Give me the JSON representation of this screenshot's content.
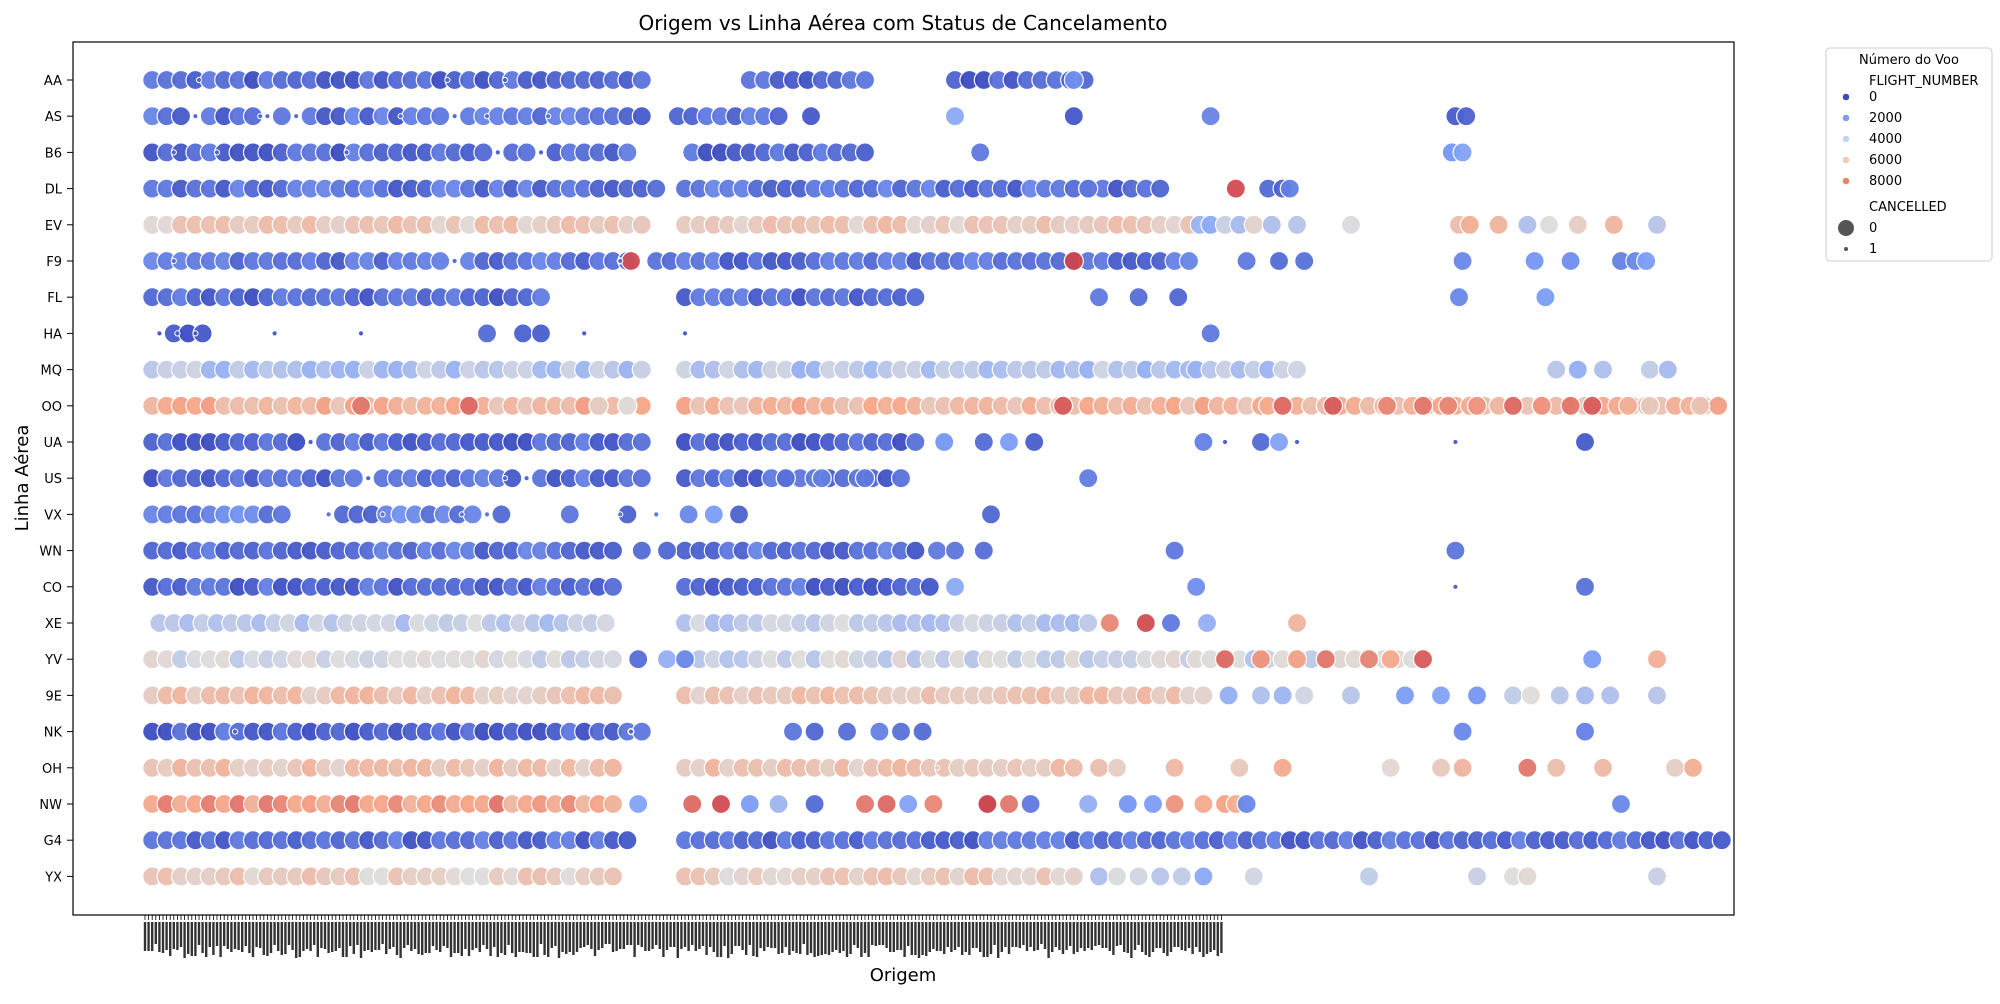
{
  "chart_data": {
    "type": "scatter",
    "title": "Origem vs Linha Aérea com Status de Cancelamento",
    "xlabel": "Origem",
    "ylabel": "Linha Aérea",
    "airlines": [
      "AA",
      "AS",
      "B6",
      "DL",
      "EV",
      "F9",
      "FL",
      "HA",
      "MQ",
      "OO",
      "UA",
      "US",
      "VX",
      "WN",
      "CO",
      "XE",
      "YV",
      "9E",
      "NK",
      "OH",
      "NW",
      "G4",
      "YX"
    ],
    "origin_tick_count": 300,
    "legend": {
      "title": "Número do Voo",
      "hue_title": "FLIGHT_NUMBER",
      "hue_items": [
        {
          "label": "0",
          "color": "#3b4cc0"
        },
        {
          "label": "2000",
          "color": "#7b9ff9"
        },
        {
          "label": "4000",
          "color": "#c0d4f5"
        },
        {
          "label": "6000",
          "color": "#f2cbb7"
        },
        {
          "label": "8000",
          "color": "#ee8468"
        }
      ],
      "size_title": "CANCELLED",
      "size_items": [
        {
          "label": "0",
          "size": "large"
        },
        {
          "label": "1",
          "size": "small"
        }
      ],
      "placement": "outside upper right"
    },
    "colormap": "coolwarm",
    "hue_range": [
      0,
      9000
    ],
    "rows": [
      {
        "airline": "AA",
        "hue": 600,
        "segments": [
          [
            2,
            140
          ],
          [
            168,
            202
          ],
          [
            225,
            264
          ]
        ],
        "extra": [
          [
            258,
            1800
          ]
        ],
        "cancelled": [
          15,
          84,
          100
        ]
      },
      {
        "airline": "AS",
        "hue": 900,
        "segments": [
          [
            2,
            138
          ],
          [
            148,
            178
          ]
        ],
        "extra": [
          [
            185,
            300
          ],
          [
            225,
            2600
          ],
          [
            258,
            300
          ],
          [
            296,
            1500
          ],
          [
            364,
            400
          ],
          [
            367,
            600
          ]
        ],
        "cancelled": [
          14,
          32,
          34,
          42,
          71,
          86,
          95,
          112
        ]
      },
      {
        "airline": "B6",
        "hue": 700,
        "segments": [
          [
            2,
            136
          ],
          [
            152,
            198
          ]
        ],
        "extra": [
          [
            200,
            500
          ],
          [
            232,
            1200
          ],
          [
            363,
            2000
          ],
          [
            366,
            2400
          ]
        ],
        "cancelled": [
          8,
          20,
          56,
          98,
          110
        ]
      },
      {
        "airline": "DL",
        "hue": 900,
        "segments": [
          [
            2,
            145
          ],
          [
            150,
            285
          ]
        ],
        "extra": [
          [
            262,
            1200
          ],
          [
            303,
            8000
          ],
          [
            312,
            800
          ],
          [
            316,
            600
          ],
          [
            318,
            1400
          ]
        ],
        "cancelled": []
      },
      {
        "airline": "EV",
        "hue": 5400,
        "segments": [
          [
            2,
            140
          ],
          [
            150,
            290
          ]
        ],
        "extra": [
          [
            293,
            3000
          ],
          [
            296,
            2600
          ],
          [
            300,
            4000
          ],
          [
            304,
            3200
          ],
          [
            308,
            5000
          ],
          [
            313,
            3400
          ],
          [
            320,
            3600
          ],
          [
            335,
            4400
          ],
          [
            365,
            5800
          ],
          [
            368,
            6400
          ],
          [
            376,
            6200
          ],
          [
            384,
            3400
          ],
          [
            390,
            4600
          ],
          [
            398,
            5200
          ],
          [
            408,
            6200
          ],
          [
            420,
            3600
          ]
        ],
        "cancelled": []
      },
      {
        "airline": "F9",
        "hue": 900,
        "segments": [
          [
            2,
            135
          ],
          [
            142,
            290
          ]
        ],
        "extra": [
          [
            132,
            8200
          ],
          [
            135,
            8000
          ],
          [
            258,
            8100
          ],
          [
            306,
            1200
          ],
          [
            315,
            800
          ],
          [
            322,
            1000
          ],
          [
            366,
            1600
          ],
          [
            386,
            2000
          ],
          [
            396,
            1800
          ],
          [
            410,
            1400
          ],
          [
            414,
            1600
          ],
          [
            417,
            2200
          ]
        ],
        "cancelled": [
          8,
          86,
          132
        ]
      },
      {
        "airline": "FL",
        "hue": 700,
        "segments": [
          [
            2,
            110
          ],
          [
            150,
            215
          ]
        ],
        "extra": [
          [
            265,
            1200
          ],
          [
            276,
            900
          ],
          [
            287,
            700
          ],
          [
            365,
            1600
          ],
          [
            389,
            2200
          ]
        ],
        "cancelled": []
      },
      {
        "airline": "HA",
        "hue": 500,
        "segments": [
          [
            4,
            16
          ]
        ],
        "extra": [
          [
            36,
            600
          ],
          [
            60,
            1000
          ],
          [
            95,
            800
          ],
          [
            105,
            600
          ],
          [
            110,
            500
          ],
          [
            122,
            600
          ],
          [
            150,
            1200
          ],
          [
            296,
            1200
          ]
        ],
        "cancelled": [
          4,
          9,
          14,
          36,
          60,
          122,
          150
        ]
      },
      {
        "airline": "MQ",
        "hue": 3500,
        "segments": [
          [
            2,
            140
          ],
          [
            150,
            290
          ],
          [
            292,
            320
          ]
        ],
        "extra": [
          [
            392,
            3600
          ],
          [
            398,
            2800
          ],
          [
            405,
            3400
          ],
          [
            418,
            3800
          ],
          [
            423,
            3200
          ]
        ],
        "cancelled": []
      },
      {
        "airline": "OO",
        "hue": 6200,
        "segments": [
          [
            2,
            140
          ],
          [
            150,
            310
          ],
          [
            312,
            400
          ],
          [
            405,
            440
          ]
        ],
        "extra": [
          [
            60,
            7400
          ],
          [
            90,
            7600
          ],
          [
            126,
            5200
          ],
          [
            134,
            4600
          ],
          [
            255,
            7800
          ],
          [
            316,
            7600
          ],
          [
            330,
            7800
          ],
          [
            345,
            7200
          ],
          [
            355,
            7400
          ],
          [
            362,
            7200
          ],
          [
            370,
            7000
          ],
          [
            380,
            7600
          ],
          [
            388,
            7000
          ],
          [
            396,
            7400
          ],
          [
            402,
            7800
          ],
          [
            412,
            6400
          ],
          [
            418,
            5400
          ],
          [
            432,
            5600
          ],
          [
            440,
            8200
          ],
          [
            442,
            4400
          ]
        ],
        "cancelled": []
      },
      {
        "airline": "UA",
        "hue": 600,
        "segments": [
          [
            2,
            140
          ],
          [
            150,
            215
          ]
        ],
        "extra": [
          [
            222,
            2000
          ],
          [
            233,
            800
          ],
          [
            240,
            2200
          ],
          [
            247,
            500
          ],
          [
            294,
            1400
          ],
          [
            300,
            1200
          ],
          [
            310,
            800
          ],
          [
            315,
            2400
          ],
          [
            320,
            1600
          ],
          [
            364,
            600
          ],
          [
            400,
            400
          ]
        ],
        "cancelled": [
          46,
          300,
          320,
          364
        ]
      },
      {
        "airline": "US",
        "hue": 700,
        "segments": [
          [
            2,
            140
          ],
          [
            150,
            210
          ]
        ],
        "extra": [
          [
            178,
            1000
          ],
          [
            188,
            1400
          ],
          [
            200,
            1200
          ],
          [
            262,
            1300
          ]
        ],
        "cancelled": [
          62,
          100,
          106
        ]
      },
      {
        "airline": "VX",
        "hue": 1200,
        "segments": [
          [
            2,
            40
          ],
          [
            55,
            100
          ]
        ],
        "extra": [
          [
            118,
            1100
          ],
          [
            134,
            600
          ],
          [
            151,
            1600
          ],
          [
            158,
            2200
          ],
          [
            165,
            600
          ],
          [
            235,
            700
          ]
        ],
        "cancelled": [
          51,
          66,
          88,
          95,
          132,
          142
        ]
      },
      {
        "airline": "WN",
        "hue": 900,
        "segments": [
          [
            2,
            132
          ],
          [
            150,
            215
          ]
        ],
        "extra": [
          [
            138,
            800
          ],
          [
            145,
            700
          ],
          [
            220,
            1200
          ],
          [
            225,
            1100
          ],
          [
            233,
            900
          ],
          [
            286,
            1200
          ],
          [
            364,
            1100
          ]
        ],
        "cancelled": []
      },
      {
        "airline": "CO",
        "hue": 700,
        "segments": [
          [
            2,
            130
          ],
          [
            150,
            220
          ]
        ],
        "extra": [
          [
            225,
            2600
          ],
          [
            292,
            1800
          ],
          [
            364,
            1600
          ],
          [
            400,
            1000
          ]
        ],
        "cancelled": [
          364
        ]
      },
      {
        "airline": "XE",
        "hue": 3800,
        "segments": [
          [
            4,
            130
          ],
          [
            150,
            265
          ]
        ],
        "extra": [
          [
            268,
            7200
          ],
          [
            278,
            8000
          ],
          [
            285,
            1200
          ],
          [
            295,
            2800
          ],
          [
            320,
            6200
          ]
        ],
        "cancelled": []
      },
      {
        "airline": "YV",
        "hue": 4200,
        "segments": [
          [
            2,
            130
          ],
          [
            150,
            290
          ],
          [
            292,
            355
          ]
        ],
        "extra": [
          [
            137,
            900
          ],
          [
            145,
            2800
          ],
          [
            150,
            1600
          ],
          [
            300,
            7600
          ],
          [
            310,
            7000
          ],
          [
            320,
            6800
          ],
          [
            328,
            7400
          ],
          [
            340,
            7200
          ],
          [
            346,
            6600
          ],
          [
            355,
            7800
          ],
          [
            402,
            2200
          ],
          [
            420,
            6400
          ]
        ],
        "cancelled": []
      },
      {
        "airline": "9E",
        "hue": 5600,
        "segments": [
          [
            2,
            132
          ],
          [
            150,
            295
          ]
        ],
        "extra": [
          [
            301,
            2800
          ],
          [
            310,
            3400
          ],
          [
            316,
            3000
          ],
          [
            322,
            4200
          ],
          [
            335,
            3600
          ],
          [
            350,
            2200
          ],
          [
            360,
            2400
          ],
          [
            370,
            2000
          ],
          [
            380,
            3800
          ],
          [
            385,
            4600
          ],
          [
            393,
            3600
          ],
          [
            400,
            3200
          ],
          [
            407,
            3400
          ],
          [
            420,
            3600
          ]
        ],
        "cancelled": []
      },
      {
        "airline": "NK",
        "hue": 600,
        "segments": [
          [
            2,
            140
          ]
        ],
        "extra": [
          [
            135,
            800
          ],
          [
            180,
            1100
          ],
          [
            186,
            700
          ],
          [
            195,
            900
          ],
          [
            204,
            1400
          ],
          [
            210,
            1000
          ],
          [
            216,
            800
          ],
          [
            366,
            1600
          ],
          [
            400,
            1400
          ]
        ],
        "cancelled": [
          25,
          135
        ]
      },
      {
        "airline": "OH",
        "hue": 5600,
        "segments": [
          [
            2,
            132
          ],
          [
            150,
            260
          ]
        ],
        "extra": [
          [
            265,
            5800
          ],
          [
            270,
            5200
          ],
          [
            286,
            6000
          ],
          [
            304,
            5400
          ],
          [
            316,
            6600
          ],
          [
            346,
            4800
          ],
          [
            360,
            5400
          ],
          [
            366,
            6200
          ],
          [
            384,
            7400
          ],
          [
            392,
            5800
          ],
          [
            405,
            6000
          ],
          [
            425,
            5200
          ],
          [
            430,
            6400
          ]
        ],
        "cancelled": [
          220
        ]
      },
      {
        "airline": "NW",
        "hue": 6800,
        "segments": [
          [
            2,
            132
          ]
        ],
        "extra": [
          [
            137,
            2400
          ],
          [
            152,
            7600
          ],
          [
            160,
            8000
          ],
          [
            168,
            2200
          ],
          [
            176,
            3000
          ],
          [
            186,
            800
          ],
          [
            200,
            7400
          ],
          [
            206,
            7600
          ],
          [
            212,
            2400
          ],
          [
            219,
            7200
          ],
          [
            234,
            8200
          ],
          [
            240,
            7400
          ],
          [
            246,
            1200
          ],
          [
            262,
            2800
          ],
          [
            273,
            2000
          ],
          [
            280,
            2200
          ],
          [
            286,
            7000
          ],
          [
            294,
            6600
          ],
          [
            300,
            6800
          ],
          [
            303,
            6400
          ],
          [
            306,
            1600
          ],
          [
            410,
            1600
          ]
        ],
        "cancelled": []
      },
      {
        "airline": "G4",
        "hue": 800,
        "segments": [
          [
            2,
            135
          ],
          [
            150,
            440
          ]
        ],
        "extra": [],
        "cancelled": []
      },
      {
        "airline": "YX",
        "hue": 5200,
        "segments": [
          [
            2,
            132
          ],
          [
            150,
            260
          ]
        ],
        "extra": [
          [
            265,
            3400
          ],
          [
            270,
            4400
          ],
          [
            276,
            4200
          ],
          [
            282,
            3600
          ],
          [
            288,
            3800
          ],
          [
            294,
            2600
          ],
          [
            308,
            4200
          ],
          [
            340,
            3800
          ],
          [
            370,
            4000
          ],
          [
            380,
            4600
          ],
          [
            384,
            4800
          ],
          [
            420,
            4000
          ]
        ],
        "cancelled": []
      }
    ]
  }
}
